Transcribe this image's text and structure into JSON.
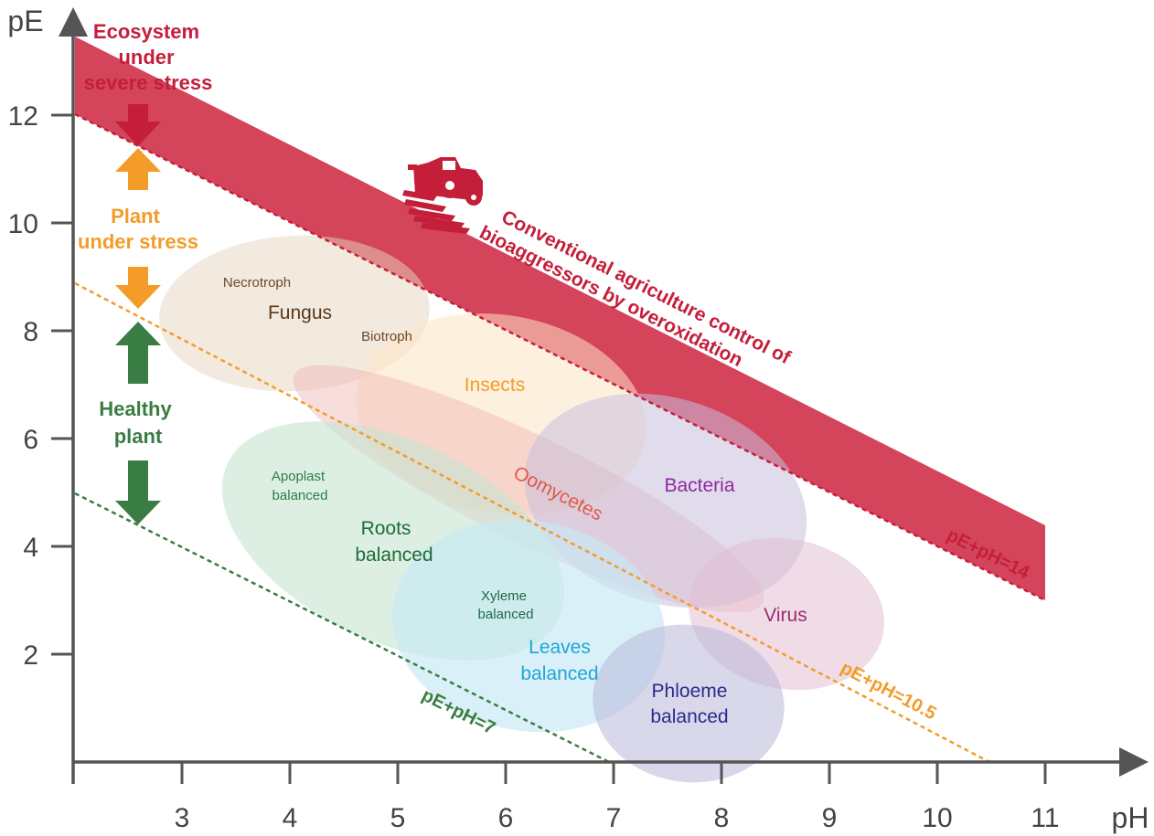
{
  "axes": {
    "x_title": "pH",
    "y_title": "pE",
    "x_ticks": [
      "3",
      "4",
      "5",
      "6",
      "7",
      "8",
      "9",
      "10",
      "11"
    ],
    "y_ticks": [
      "2",
      "4",
      "6",
      "8",
      "10",
      "12"
    ]
  },
  "lines": {
    "red": "pE+pH=14",
    "orange": "pE+pH=10.5",
    "green": "pE+pH=7"
  },
  "zones": {
    "severe_stress": [
      "Ecosystem",
      "under",
      "severe stress"
    ],
    "plant_stress": [
      "Plant",
      "under stress"
    ],
    "healthy": [
      "Healthy",
      "plant"
    ]
  },
  "conventional": [
    "Conventional agriculture control of",
    "bioaggressors by overoxidation"
  ],
  "regions": {
    "necrotroph": "Necrotroph",
    "fungus": "Fungus",
    "biotroph": "Biotroph",
    "insects": "Insects",
    "oomycetes": "Oomycetes",
    "bacteria": "Bacteria",
    "virus": "Virus",
    "apoplast": [
      "Apoplast",
      "balanced"
    ],
    "roots": [
      "Roots",
      "balanced"
    ],
    "xyleme": [
      "Xyleme",
      "balanced"
    ],
    "leaves": [
      "Leaves",
      "balanced"
    ],
    "phloeme": [
      "Phloeme",
      "balanced"
    ]
  },
  "colors": {
    "red": "#c41e3a",
    "orange": "#f39c2a",
    "green": "#3a7d44",
    "axis": "#555555"
  }
}
